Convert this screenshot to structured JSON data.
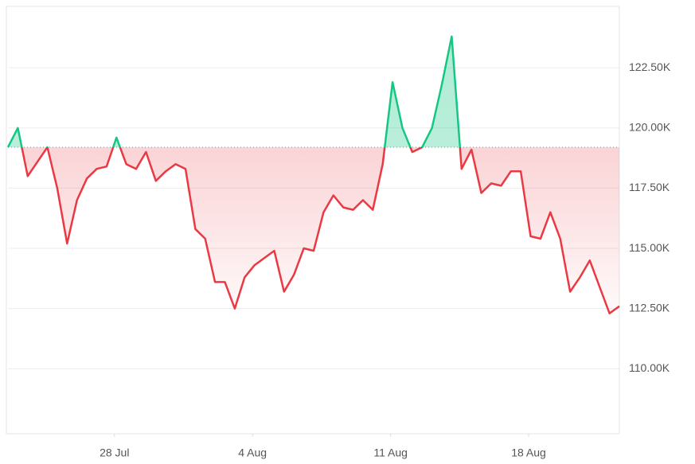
{
  "chart_data": {
    "type": "line",
    "x": [
      22.6,
      23.1,
      23.6,
      24.1,
      24.6,
      25.1,
      25.6,
      26.1,
      26.6,
      27.1,
      27.6,
      28.1,
      28.6,
      29.1,
      29.6,
      30.1,
      30.6,
      31.1,
      31.6,
      32.1,
      32.6,
      33.1,
      33.6,
      34.1,
      34.6,
      35.1,
      35.6,
      36.1,
      36.6,
      37.1,
      37.6,
      38.1,
      38.6,
      39.1,
      39.6,
      40.1,
      40.6,
      41.1,
      41.6,
      42.1,
      42.6,
      43.1,
      43.6,
      44.1,
      44.6,
      45.1,
      45.6,
      46.1,
      46.6,
      47.1,
      47.6,
      48.1,
      48.6,
      49.1,
      49.6,
      50.1,
      50.6,
      51.1,
      51.6,
      52.1,
      52.6,
      53.1,
      53.6
    ],
    "values": [
      119.2,
      120.0,
      118.0,
      118.6,
      119.2,
      117.5,
      115.2,
      117.0,
      117.9,
      118.3,
      118.4,
      119.6,
      118.5,
      118.3,
      119.0,
      117.8,
      118.2,
      118.5,
      118.3,
      115.8,
      115.4,
      113.6,
      113.6,
      112.5,
      113.8,
      114.3,
      114.6,
      114.9,
      113.2,
      113.9,
      115.0,
      114.9,
      116.5,
      117.2,
      116.7,
      116.6,
      117.0,
      116.6,
      118.5,
      121.9,
      120.0,
      119.0,
      119.2,
      120.0,
      121.8,
      123.8,
      118.3,
      119.1,
      117.3,
      117.7,
      117.6,
      118.2,
      118.2,
      115.5,
      115.4,
      116.5,
      115.4,
      113.2,
      113.8,
      114.5,
      113.4,
      112.3,
      112.6
    ],
    "baseline": 119.2,
    "color_up": "#16c784",
    "color_down": "#ea3943",
    "xlim": [
      22.6,
      53.6
    ],
    "xticks": [
      {
        "value": 28,
        "label": "28 Jul"
      },
      {
        "value": 35,
        "label": "4 Aug"
      },
      {
        "value": 42,
        "label": "11 Aug"
      },
      {
        "value": 49,
        "label": "18 Aug"
      }
    ],
    "ylim": [
      107.3,
      125.05
    ],
    "yticks": [
      {
        "value": 110,
        "label": "110.00K"
      },
      {
        "value": 112.5,
        "label": "112.50K"
      },
      {
        "value": 115,
        "label": "115.00K"
      },
      {
        "value": 117.5,
        "label": "117.50K"
      },
      {
        "value": 120,
        "label": "120.00K"
      },
      {
        "value": 122.5,
        "label": "122.50K"
      }
    ],
    "grid": true
  }
}
